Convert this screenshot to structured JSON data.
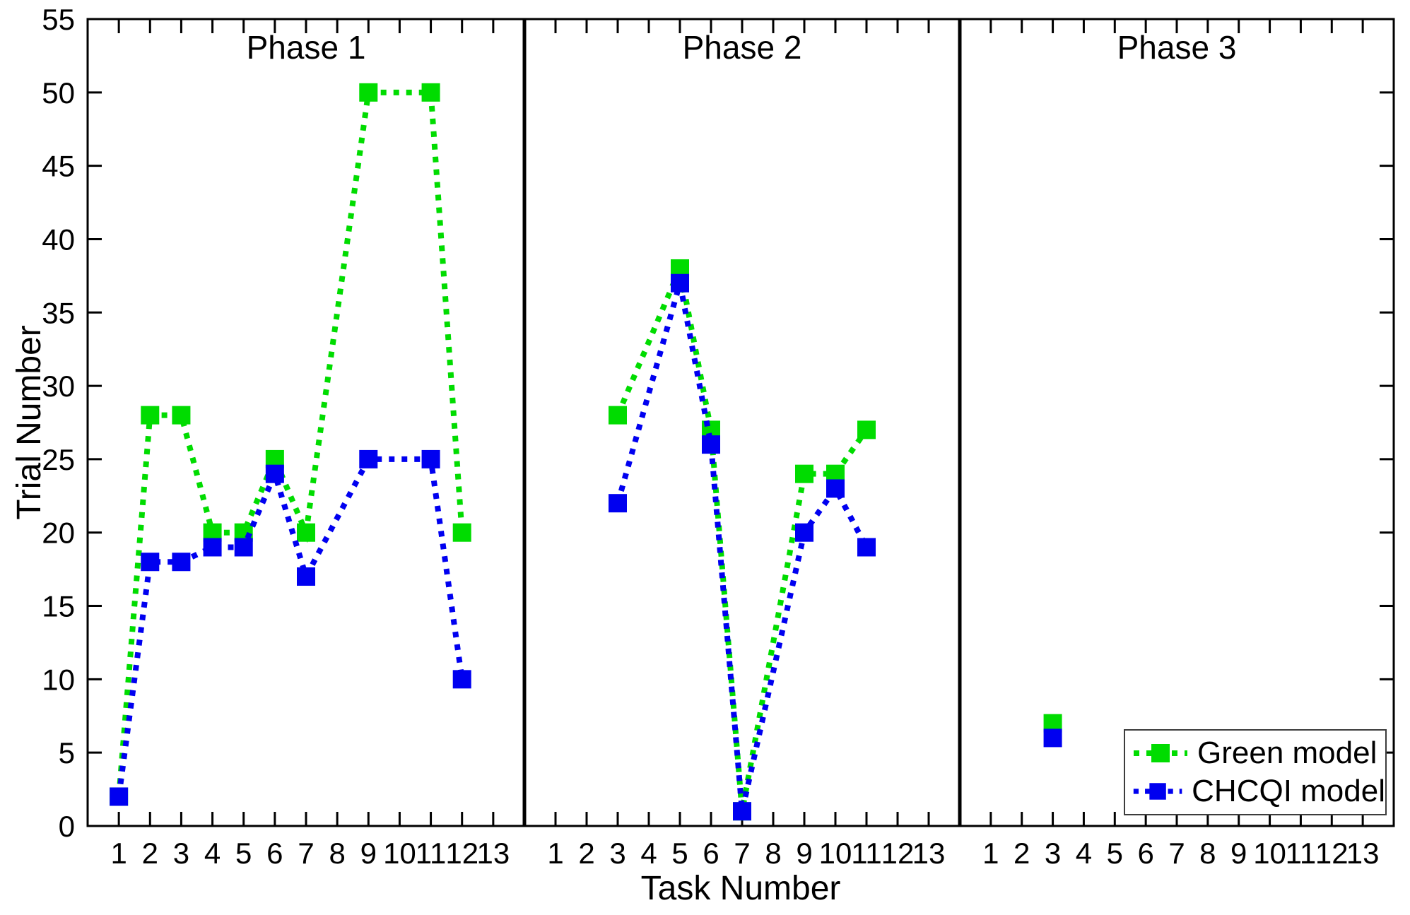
{
  "chart_data": {
    "type": "line",
    "title": "",
    "xlabel": "Task Number",
    "ylabel": "Trial Number",
    "ylim": [
      0,
      55
    ],
    "ytick_step": 5,
    "xticks": [
      1,
      2,
      3,
      4,
      5,
      6,
      7,
      8,
      9,
      10,
      11,
      12,
      13
    ],
    "grid": false,
    "linestyle": "dotted",
    "marker": "square",
    "legend_position": "bottom-right",
    "series_meta": [
      {
        "name": "Green model",
        "color": "#00DC00"
      },
      {
        "name": "CHCQI model",
        "color": "#0000F0"
      }
    ],
    "panels": [
      {
        "label": "Phase 1",
        "series": [
          {
            "name": "Green model",
            "points": [
              [
                1,
                2
              ],
              [
                2,
                28
              ],
              [
                3,
                28
              ],
              [
                4,
                20
              ],
              [
                5,
                20
              ],
              [
                6,
                25
              ],
              [
                7,
                20
              ],
              [
                9,
                50
              ],
              [
                11,
                50
              ],
              [
                12,
                20
              ]
            ]
          },
          {
            "name": "CHCQI model",
            "points": [
              [
                1,
                2
              ],
              [
                2,
                18
              ],
              [
                3,
                18
              ],
              [
                4,
                19
              ],
              [
                5,
                19
              ],
              [
                6,
                24
              ],
              [
                7,
                17
              ],
              [
                9,
                25
              ],
              [
                11,
                25
              ],
              [
                12,
                10
              ]
            ]
          }
        ]
      },
      {
        "label": "Phase 2",
        "series": [
          {
            "name": "Green model",
            "points": [
              [
                3,
                28
              ],
              [
                5,
                38
              ],
              [
                6,
                27
              ],
              [
                7,
                1
              ],
              [
                9,
                24
              ],
              [
                10,
                24
              ],
              [
                11,
                27
              ]
            ]
          },
          {
            "name": "CHCQI model",
            "points": [
              [
                3,
                22
              ],
              [
                5,
                37
              ],
              [
                6,
                26
              ],
              [
                7,
                1
              ],
              [
                9,
                20
              ],
              [
                10,
                23
              ],
              [
                11,
                19
              ]
            ]
          }
        ]
      },
      {
        "label": "Phase 3",
        "series": [
          {
            "name": "Green model",
            "points": [
              [
                3,
                7
              ]
            ]
          },
          {
            "name": "CHCQI model",
            "points": [
              [
                3,
                6
              ]
            ]
          }
        ]
      }
    ],
    "legend": [
      "Green model",
      "CHCQI model"
    ]
  }
}
